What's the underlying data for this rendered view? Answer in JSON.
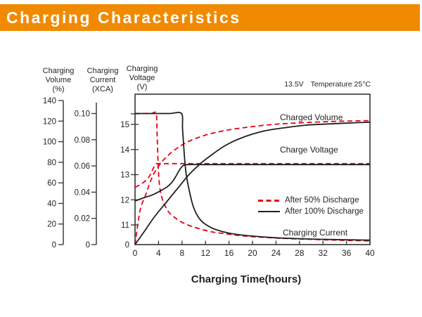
{
  "banner": {
    "title": "Charging Characteristics"
  },
  "colors": {
    "banner_bg": "#F18A00",
    "banner_fg": "#FFFFFF",
    "red": "#E60014",
    "black": "#231F20",
    "axis": "#333333"
  },
  "chart": {
    "note": {
      "voltage": "13.5V",
      "temperature": "Temperature 25°C"
    },
    "x_axis_title": "Charging Time(hours)",
    "axis_headers": {
      "volume": {
        "line1": "Charging",
        "line2": "Volume",
        "unit": "(%)"
      },
      "current": {
        "line1": "Charging",
        "line2": "Current",
        "unit": "(XCA)"
      },
      "voltage": {
        "line1": "Charging",
        "line2": "Voltage",
        "unit": "(V)"
      }
    },
    "curve_labels": {
      "charged_volume": "Charged Volume",
      "charge_voltage": "Charge Voltage",
      "charging_current": "Charging Current"
    },
    "legend": [
      {
        "label": "After 50% Discharge",
        "style": "dashed",
        "color": "#E60014"
      },
      {
        "label": "After 100% Discharge",
        "style": "solid",
        "color": "#231F20"
      }
    ]
  },
  "chart_data": {
    "type": "line",
    "title": "Charging Characteristics",
    "xlabel": "Charging Time(hours)",
    "annotation": "13.5V Temperature 25°C",
    "grid": false,
    "legend_position": "inside-right",
    "x": {
      "range": [
        0,
        40
      ],
      "ticks": [
        0,
        4,
        8,
        12,
        16,
        20,
        24,
        28,
        32,
        36,
        40
      ]
    },
    "y_axes": {
      "volume": {
        "label": "Charging Volume (%)",
        "range": [
          0,
          140
        ],
        "ticks": [
          0,
          20,
          40,
          60,
          80,
          100,
          120,
          140
        ]
      },
      "current": {
        "label": "Charging Current (XCA)",
        "range": [
          0,
          0.1
        ],
        "ticks": [
          0,
          0.02,
          0.04,
          0.06,
          0.08,
          0.1
        ]
      },
      "voltage": {
        "label": "Charging Voltage (V)",
        "ticks": [
          0,
          11,
          12,
          13,
          14,
          15
        ],
        "scale_break_below": 11,
        "top_tick": 15.42
      }
    },
    "series": [
      {
        "id": "volume-50",
        "label": "Charged Volume",
        "condition": "After 50% Discharge",
        "axis": "volume",
        "style": "dashed",
        "color": "#E60014",
        "points": [
          [
            0,
            0
          ],
          [
            0.85,
            33
          ],
          [
            1.8,
            48
          ],
          [
            2.6,
            61
          ],
          [
            3.3,
            70
          ],
          [
            4.5,
            80
          ],
          [
            5.5,
            86
          ],
          [
            6.5,
            91
          ],
          [
            7.8,
            96
          ],
          [
            9,
            100
          ],
          [
            11,
            104.5
          ],
          [
            13,
            108
          ],
          [
            16,
            111.5
          ],
          [
            19,
            114
          ],
          [
            23,
            116.5
          ],
          [
            27,
            118
          ],
          [
            33,
            119.5
          ],
          [
            40,
            120.5
          ]
        ]
      },
      {
        "id": "voltage-50",
        "label": "Charge Voltage",
        "condition": "After 50% Discharge",
        "axis": "voltage",
        "style": "dashed",
        "color": "#E60014",
        "points": [
          [
            0,
            12.5
          ],
          [
            1,
            12.62
          ],
          [
            2,
            12.8
          ],
          [
            2.6,
            13.0
          ],
          [
            3.0,
            13.2
          ],
          [
            3.4,
            13.38
          ],
          [
            3.8,
            13.44
          ],
          [
            5,
            13.44
          ],
          [
            8,
            13.44
          ],
          [
            15,
            13.44
          ],
          [
            25,
            13.44
          ],
          [
            40,
            13.44
          ]
        ]
      },
      {
        "id": "current-50",
        "label": "Charging Current",
        "condition": "After 50% Discharge",
        "axis": "current",
        "style": "dashed",
        "color": "#E60014",
        "points": [
          [
            0,
            0.1
          ],
          [
            1.5,
            0.1
          ],
          [
            2.8,
            0.1
          ],
          [
            3.6,
            0.1
          ],
          [
            3.75,
            0.085
          ],
          [
            3.95,
            0.06
          ],
          [
            4.15,
            0.046
          ],
          [
            4.5,
            0.037
          ],
          [
            5,
            0.0305
          ],
          [
            6,
            0.0235
          ],
          [
            7.7,
            0.0178
          ],
          [
            9,
            0.015
          ],
          [
            10.4,
            0.0128
          ],
          [
            13,
            0.0098
          ],
          [
            15,
            0.0085
          ],
          [
            18,
            0.0068
          ],
          [
            22,
            0.0055
          ],
          [
            26,
            0.0046
          ],
          [
            30,
            0.004
          ],
          [
            35,
            0.0033
          ],
          [
            40,
            0.0028
          ]
        ]
      },
      {
        "id": "volume-100",
        "label": "Charged Volume",
        "condition": "After 100% Discharge",
        "axis": "volume",
        "style": "solid",
        "color": "#231F20",
        "points": [
          [
            0,
            0
          ],
          [
            1.6,
            13
          ],
          [
            3.3,
            27
          ],
          [
            5.3,
            41
          ],
          [
            7.3,
            55
          ],
          [
            9.2,
            68
          ],
          [
            11.2,
            79
          ],
          [
            13,
            87
          ],
          [
            15,
            95
          ],
          [
            17,
            101
          ],
          [
            19,
            105.5
          ],
          [
            21,
            109
          ],
          [
            23,
            111.5
          ],
          [
            26,
            114
          ],
          [
            29,
            116
          ],
          [
            32,
            117
          ],
          [
            36,
            118
          ],
          [
            40,
            119
          ]
        ]
      },
      {
        "id": "voltage-100",
        "label": "Charge Voltage",
        "condition": "After 100% Discharge",
        "axis": "voltage",
        "style": "solid",
        "color": "#231F20",
        "points": [
          [
            0,
            11.95
          ],
          [
            1.5,
            12.08
          ],
          [
            3,
            12.2
          ],
          [
            4.5,
            12.38
          ],
          [
            5.5,
            12.52
          ],
          [
            6.3,
            12.7
          ],
          [
            7,
            12.95
          ],
          [
            7.6,
            13.2
          ],
          [
            8.2,
            13.36
          ],
          [
            9,
            13.4
          ],
          [
            12,
            13.4
          ],
          [
            20,
            13.4
          ],
          [
            30,
            13.4
          ],
          [
            40,
            13.4
          ]
        ]
      },
      {
        "id": "current-100",
        "label": "Charging Current",
        "condition": "After 100% Discharge",
        "axis": "current",
        "style": "solid",
        "color": "#231F20",
        "points": [
          [
            0,
            0.1
          ],
          [
            2,
            0.1
          ],
          [
            4,
            0.1
          ],
          [
            6,
            0.1
          ],
          [
            7.9,
            0.1
          ],
          [
            8.1,
            0.088
          ],
          [
            8.4,
            0.068
          ],
          [
            8.7,
            0.054
          ],
          [
            9.2,
            0.042
          ],
          [
            10,
            0.028
          ],
          [
            11.2,
            0.0185
          ],
          [
            13,
            0.0128
          ],
          [
            15,
            0.0098
          ],
          [
            17,
            0.008
          ],
          [
            20,
            0.0065
          ],
          [
            24,
            0.0052
          ],
          [
            28,
            0.0045
          ],
          [
            32,
            0.004
          ],
          [
            36,
            0.0037
          ],
          [
            40,
            0.0034
          ]
        ]
      }
    ]
  }
}
